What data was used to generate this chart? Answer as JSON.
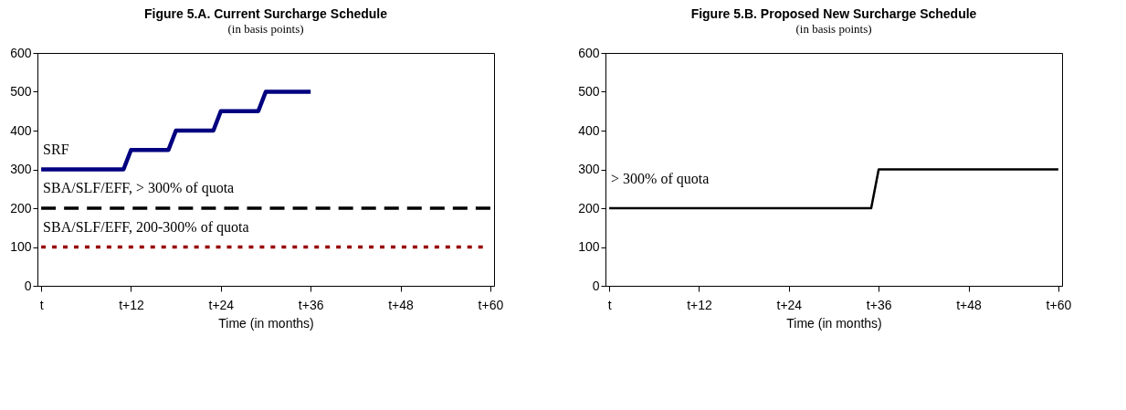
{
  "chart_data": [
    {
      "type": "line",
      "title": "Figure 5.A. Current Surcharge Schedule",
      "subtitle": "(in basis points)",
      "xlabel": "Time (in months)",
      "ylim": [
        0,
        600
      ],
      "grid": false,
      "marker": "none",
      "categories": [
        "t",
        null,
        null,
        null,
        null,
        null,
        null,
        null,
        null,
        null,
        null,
        null,
        "t+12",
        null,
        null,
        null,
        null,
        null,
        null,
        null,
        null,
        null,
        null,
        null,
        "t+24",
        null,
        null,
        null,
        null,
        null,
        null,
        null,
        null,
        null,
        null,
        null,
        "t+36",
        null,
        null,
        null,
        null,
        null,
        null,
        null,
        null,
        null,
        null,
        null,
        "t+48",
        null,
        null,
        null,
        null,
        null,
        null,
        null,
        null,
        null,
        null,
        null,
        "t+60"
      ],
      "yticks": [
        0,
        100,
        200,
        300,
        400,
        500,
        600
      ],
      "series": [
        {
          "color": "#000080",
          "line_style": "solid",
          "values": [
            300,
            300,
            300,
            300,
            300,
            300,
            300,
            300,
            300,
            300,
            300,
            300,
            350,
            350,
            350,
            350,
            350,
            350,
            400,
            400,
            400,
            400,
            400,
            400,
            450,
            450,
            450,
            450,
            450,
            450,
            500,
            500,
            500,
            500,
            500,
            500,
            500,
            null,
            null,
            null,
            null,
            null,
            null,
            null,
            null,
            null,
            null,
            null,
            null,
            null,
            null,
            null,
            null,
            null,
            null,
            null,
            null,
            null,
            null,
            null,
            null
          ]
        },
        {
          "color": "#000000",
          "line_style": "dashed",
          "values": [
            200,
            200,
            200,
            200,
            200,
            200,
            200,
            200,
            200,
            200,
            200,
            200,
            200,
            200,
            200,
            200,
            200,
            200,
            200,
            200,
            200,
            200,
            200,
            200,
            200,
            200,
            200,
            200,
            200,
            200,
            200,
            200,
            200,
            200,
            200,
            200,
            200,
            200,
            200,
            200,
            200,
            200,
            200,
            200,
            200,
            200,
            200,
            200,
            200,
            200,
            200,
            200,
            200,
            200,
            200,
            200,
            200,
            200,
            200,
            200,
            200
          ]
        },
        {
          "color": "#990000",
          "line_style": "dotted",
          "values": [
            100,
            100,
            100,
            100,
            100,
            100,
            100,
            100,
            100,
            100,
            100,
            100,
            100,
            100,
            100,
            100,
            100,
            100,
            100,
            100,
            100,
            100,
            100,
            100,
            100,
            100,
            100,
            100,
            100,
            100,
            100,
            100,
            100,
            100,
            100,
            100,
            100,
            100,
            100,
            100,
            100,
            100,
            100,
            100,
            100,
            100,
            100,
            100,
            100,
            100,
            100,
            100,
            100,
            100,
            100,
            100,
            100,
            100,
            100,
            100,
            null
          ]
        }
      ],
      "annotations": [
        "SRF",
        "SBA/SLF/EFF, > 300% of quota",
        "SBA/SLF/EFF, 200-300% of quota"
      ]
    },
    {
      "type": "line",
      "title": "Figure 5.B. Proposed New Surcharge Schedule",
      "subtitle": "(in basis points)",
      "xlabel": "Time (in months)",
      "ylim": [
        0,
        600
      ],
      "grid": false,
      "marker": "none",
      "categories": [
        "t",
        null,
        null,
        null,
        null,
        null,
        null,
        null,
        null,
        null,
        null,
        null,
        "t+12",
        null,
        null,
        null,
        null,
        null,
        null,
        null,
        null,
        null,
        null,
        null,
        "t+24",
        null,
        null,
        null,
        null,
        null,
        null,
        null,
        null,
        null,
        null,
        null,
        "t+36",
        null,
        null,
        null,
        null,
        null,
        null,
        null,
        null,
        null,
        null,
        null,
        "t+48",
        null,
        null,
        null,
        null,
        null,
        null,
        null,
        null,
        null,
        null,
        null,
        "t+60"
      ],
      "yticks": [
        0,
        100,
        200,
        300,
        400,
        500,
        600
      ],
      "series": [
        {
          "color": "#000000",
          "line_style": "solid",
          "values": [
            200,
            200,
            200,
            200,
            200,
            200,
            200,
            200,
            200,
            200,
            200,
            200,
            200,
            200,
            200,
            200,
            200,
            200,
            200,
            200,
            200,
            200,
            200,
            200,
            200,
            200,
            200,
            200,
            200,
            200,
            200,
            200,
            200,
            200,
            200,
            200,
            300,
            300,
            300,
            300,
            300,
            300,
            300,
            300,
            300,
            300,
            300,
            300,
            300,
            300,
            300,
            300,
            300,
            300,
            300,
            300,
            300,
            300,
            300,
            300,
            300
          ]
        }
      ],
      "annotations": [
        "> 300% of quota"
      ]
    }
  ]
}
